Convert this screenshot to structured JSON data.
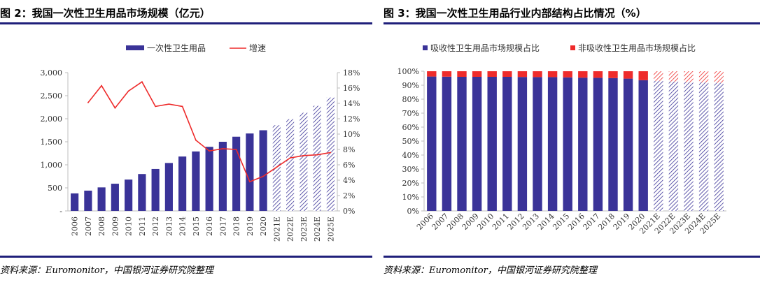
{
  "figures": [
    {
      "title": "图 2：我国一次性卫生用品市场规模（亿元）",
      "source": "资料来源：Euromonitor，中国银河证券研究院整理",
      "chart_data": {
        "type": "bar",
        "categories": [
          "2006",
          "2007",
          "2008",
          "2009",
          "2010",
          "2011",
          "2012",
          "2013",
          "2014",
          "2015",
          "2016",
          "2017",
          "2018",
          "2019",
          "2020",
          "2021E",
          "2022E",
          "2023E",
          "2024E",
          "2025E"
        ],
        "forecast_from_index": 15,
        "series": [
          {
            "name": "一次性卫生用品",
            "kind": "bar",
            "axis": "left",
            "values": [
              380,
              440,
              510,
              590,
              680,
              800,
              910,
              1040,
              1180,
              1290,
              1390,
              1500,
              1610,
              1680,
              1750,
              1860,
              1990,
              2130,
              2280,
              2460
            ]
          },
          {
            "name": "增速",
            "kind": "line",
            "axis": "right",
            "values": [
              null,
              14.1,
              16.3,
              13.4,
              15.6,
              16.8,
              13.6,
              13.9,
              13.6,
              9.2,
              7.8,
              8.1,
              8.0,
              3.8,
              4.5,
              5.7,
              6.9,
              7.2,
              7.3,
              7.6
            ]
          }
        ],
        "y_left": {
          "min": 0,
          "max": 3000,
          "ticks": [
            0,
            500,
            1000,
            1500,
            2000,
            2500,
            3000
          ],
          "tick_labels": [
            "-",
            "500",
            "1,000",
            "1,500",
            "2,000",
            "2,500",
            "3,000"
          ]
        },
        "y_right": {
          "min": 0,
          "max": 18,
          "ticks": [
            0,
            2,
            4,
            6,
            8,
            10,
            12,
            14,
            16,
            18
          ],
          "tick_labels": [
            "0%",
            "2%",
            "4%",
            "6%",
            "8%",
            "10%",
            "12%",
            "14%",
            "16%",
            "18%"
          ]
        },
        "legend": [
          "一次性卫生用品",
          "增速"
        ],
        "legend_position": "top-center",
        "grid": false
      }
    },
    {
      "title": "图 3：我国一次性卫生用品行业内部结构占比情况（%）",
      "source": "资料来源：Euromonitor，中国银河证券研究院整理",
      "chart_data": {
        "type": "bar",
        "stacked": true,
        "categories": [
          "2006",
          "2007",
          "2008",
          "2009",
          "2010",
          "2011",
          "2012",
          "2013",
          "2014",
          "2015",
          "2016",
          "2017",
          "2018",
          "2019",
          "2020",
          "2021E",
          "2022E",
          "2023E",
          "2024E",
          "2025E"
        ],
        "forecast_from_index": 15,
        "series": [
          {
            "name": "吸收性卫生用品市场规模占比",
            "values": [
              96.2,
              96.1,
              96.0,
              96.0,
              96.0,
              96.0,
              95.9,
              95.8,
              95.8,
              95.6,
              95.4,
              95.3,
              95.1,
              94.7,
              93.6,
              93.1,
              92.6,
              92.2,
              92.0,
              91.7
            ]
          },
          {
            "name": "非吸收性卫生用品市场规模占比",
            "values": [
              3.8,
              3.9,
              4.0,
              4.0,
              4.0,
              4.0,
              4.1,
              4.2,
              4.2,
              4.4,
              4.6,
              4.7,
              4.9,
              5.3,
              6.4,
              6.9,
              7.4,
              7.8,
              8.0,
              8.3
            ]
          }
        ],
        "y": {
          "min": 0,
          "max": 100,
          "ticks": [
            0,
            10,
            20,
            30,
            40,
            50,
            60,
            70,
            80,
            90,
            100
          ],
          "tick_labels": [
            "0%",
            "10%",
            "20%",
            "30%",
            "40%",
            "50%",
            "60%",
            "70%",
            "80%",
            "90%",
            "100%"
          ]
        },
        "legend": [
          "吸收性卫生用品市场规模占比",
          "非吸收性卫生用品市场规模占比"
        ],
        "legend_position": "top-center",
        "grid": false
      }
    }
  ],
  "colors": {
    "bar": "#3a3398",
    "line": "#ee2b2b",
    "rule": "#1f1f7a",
    "axis": "#bdbdbd",
    "text": "#333333"
  }
}
